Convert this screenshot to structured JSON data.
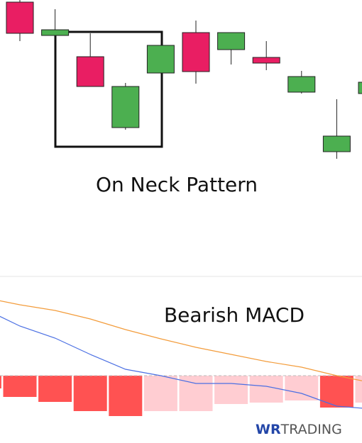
{
  "chart_data": [
    {
      "type": "candlestick",
      "annotation": "On Neck Pattern",
      "categories": [
        null,
        null,
        null,
        null,
        null,
        null,
        null,
        null,
        null,
        null,
        null
      ],
      "open": [
        397,
        350,
        320,
        220,
        297,
        354,
        330,
        319,
        270,
        186,
        268
      ],
      "high": [
        400,
        387,
        353,
        283,
        336,
        371,
        354,
        342,
        300,
        260,
        284
      ],
      "low": [
        342,
        350,
        278,
        217,
        297,
        282,
        309,
        301,
        268,
        176,
        268
      ],
      "close": [
        353,
        358,
        278,
        278,
        336,
        299,
        354,
        311,
        292,
        208,
        284
      ],
      "up_color": "#4caf50",
      "down_color": "#e91e63",
      "ylim": [
        10,
        400
      ]
    },
    {
      "type": "macd",
      "title": "Bearish MACD",
      "categories": [
        null,
        null,
        null,
        null,
        null,
        null,
        null,
        null,
        null,
        null,
        null,
        null
      ],
      "series": [
        {
          "type": "histogram",
          "values": [
            -18,
            -30,
            -37,
            -50,
            -57,
            -50,
            -50,
            -40,
            -38,
            -35,
            -45,
            -38
          ],
          "colors": [
            "#ff5252",
            "#ff5252",
            "#ff5252",
            "#ff5252",
            "#ff5252",
            "#ffcdd2",
            "#ffcdd2",
            "#ffcdd2",
            "#ffcdd2",
            "#ffcdd2",
            "#ff5252",
            "#ffcdd2"
          ]
        },
        {
          "type": "line",
          "color": "#4a6fe3",
          "values": [
            94,
            70,
            53,
            30,
            9,
            0,
            -11,
            -11,
            -15,
            -25,
            -43,
            -47
          ]
        },
        {
          "type": "line",
          "color": "#f39c3b",
          "values": [
            110,
            100,
            92,
            80,
            65,
            52,
            40,
            30,
            20,
            12,
            0,
            -10
          ]
        }
      ],
      "ylim": [
        -95,
        140
      ],
      "zero_line": true
    }
  ],
  "logo": {
    "mark": "WR",
    "name": "TRADING"
  }
}
